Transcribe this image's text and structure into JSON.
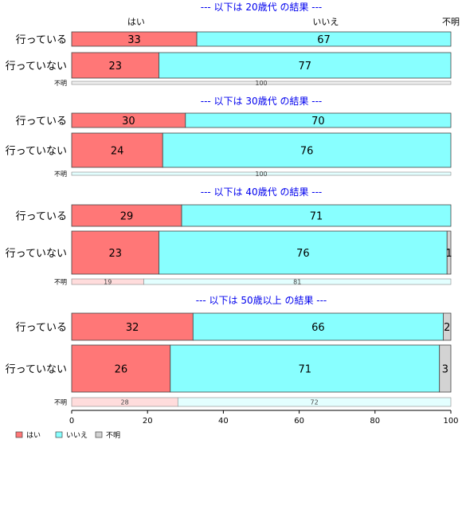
{
  "chart_data": {
    "type": "bar",
    "orientation": "horizontal",
    "stacked": true,
    "normalized_to": 100,
    "xlim": [
      0,
      100
    ],
    "x_ticks": [
      0,
      20,
      40,
      60,
      80,
      100
    ],
    "grid": false,
    "legend_position": "bottom-left",
    "top_axis_labels": [
      "はい",
      "いいえ",
      "不明"
    ],
    "series": [
      {
        "name": "はい",
        "color": "#ff7777",
        "light_color": "#ffdcdc"
      },
      {
        "name": "いいえ",
        "color": "#88ffff",
        "light_color": "#e3ffff"
      },
      {
        "name": "不明",
        "color": "#d3d3d3",
        "light_color": "#eeeeee"
      }
    ],
    "groups": [
      {
        "title": "--- 以下は 20歳代 の結果 ---",
        "rows": [
          {
            "label": "行っている",
            "values": [
              33,
              67,
              0
            ]
          },
          {
            "label": "行っていない",
            "values": [
              23,
              77,
              0
            ]
          },
          {
            "label": "不明",
            "values": [
              0,
              0,
              100
            ],
            "small": true
          }
        ]
      },
      {
        "title": "--- 以下は 30歳代 の結果 ---",
        "rows": [
          {
            "label": "行っている",
            "values": [
              30,
              70,
              0
            ]
          },
          {
            "label": "行っていない",
            "values": [
              24,
              76,
              0
            ]
          },
          {
            "label": "不明",
            "values": [
              0,
              100,
              0
            ],
            "small": true
          }
        ]
      },
      {
        "title": "--- 以下は 40歳代 の結果 ---",
        "rows": [
          {
            "label": "行っている",
            "values": [
              29,
              71,
              0
            ]
          },
          {
            "label": "行っていない",
            "values": [
              23,
              76,
              1
            ]
          },
          {
            "label": "不明",
            "values": [
              19,
              81,
              0
            ],
            "small": true
          }
        ]
      },
      {
        "title": "--- 以下は 50歳以上 の結果 ---",
        "rows": [
          {
            "label": "行っている",
            "values": [
              32,
              66,
              2
            ]
          },
          {
            "label": "行っていない",
            "values": [
              26,
              71,
              3
            ]
          },
          {
            "label": "不明",
            "values": [
              28,
              72,
              0
            ],
            "small": true
          }
        ]
      }
    ]
  }
}
